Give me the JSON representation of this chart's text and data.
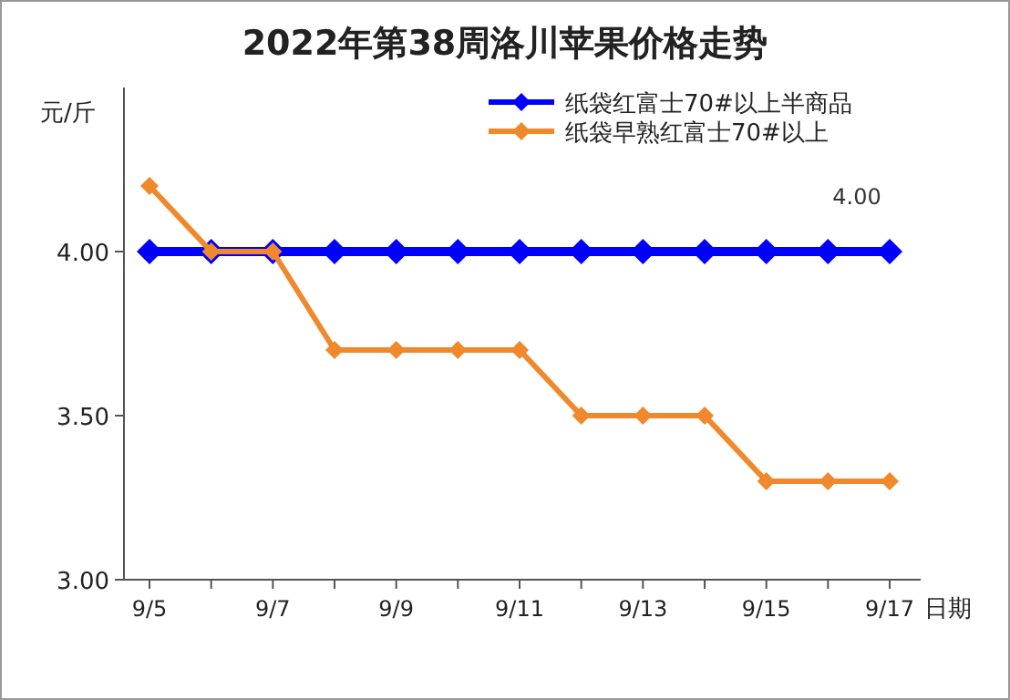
{
  "chart_data": {
    "type": "line",
    "title": "2022年第38周洛川苹果价格走势",
    "xlabel": "日期",
    "ylabel": "元/斤",
    "categories": [
      "9/5",
      null,
      "9/7",
      null,
      "9/9",
      null,
      "9/11",
      null,
      "9/13",
      null,
      "9/15",
      null,
      "9/17"
    ],
    "series": [
      {
        "name": "纸袋红富士70#以上半商品",
        "color": "#0000ff",
        "values": [
          4.0,
          4.0,
          4.0,
          4.0,
          4.0,
          4.0,
          4.0,
          4.0,
          4.0,
          4.0,
          4.0,
          4.0,
          4.0
        ],
        "value_labels": [
          null,
          null,
          null,
          null,
          null,
          null,
          null,
          null,
          null,
          null,
          null,
          null,
          "4.00"
        ]
      },
      {
        "name": "纸袋早熟红富士70#以上",
        "color": "#f0882c",
        "values": [
          4.2,
          4.0,
          4.0,
          3.7,
          3.7,
          3.7,
          3.7,
          3.5,
          3.5,
          3.5,
          3.3,
          3.3,
          3.3
        ]
      }
    ],
    "ylim": [
      3,
      4.5
    ],
    "yticks": [
      {
        "value": 3,
        "label": "3.00"
      },
      {
        "value": 3.5,
        "label": "3.50"
      },
      {
        "value": 4,
        "label": "4.00"
      }
    ],
    "legend": "top right",
    "marker": "diamond",
    "line_style": "solid"
  }
}
